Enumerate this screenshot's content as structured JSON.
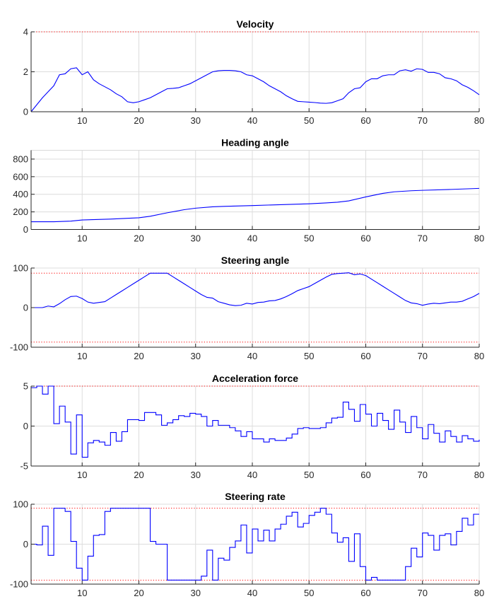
{
  "chart_data": [
    {
      "type": "line",
      "title": "Velocity",
      "xlim": [
        1,
        80
      ],
      "ylim": [
        0,
        4
      ],
      "xticks": [
        10,
        20,
        30,
        40,
        50,
        60,
        70,
        80
      ],
      "yticks": [
        0,
        2,
        4
      ],
      "grid": true,
      "limits": [
        0,
        4
      ],
      "color": "#0000ff",
      "limit_color": "#ff0000",
      "x": [
        1,
        2,
        3,
        4,
        5,
        6,
        7,
        8,
        9,
        10,
        11,
        12,
        13,
        14,
        15,
        16,
        17,
        18,
        19,
        20,
        21,
        22,
        23,
        24,
        25,
        26,
        27,
        28,
        29,
        30,
        31,
        32,
        33,
        34,
        35,
        36,
        37,
        38,
        39,
        40,
        41,
        42,
        43,
        44,
        45,
        46,
        47,
        48,
        49,
        50,
        51,
        52,
        53,
        54,
        55,
        56,
        57,
        58,
        59,
        60,
        61,
        62,
        63,
        64,
        65,
        66,
        67,
        68,
        69,
        70,
        71,
        72,
        73,
        74,
        75,
        76,
        77,
        78,
        79,
        80
      ],
      "values": [
        0,
        0.35,
        0.7,
        1.0,
        1.3,
        1.85,
        1.9,
        2.15,
        2.2,
        1.85,
        2.0,
        1.6,
        1.4,
        1.25,
        1.1,
        0.9,
        0.75,
        0.5,
        0.45,
        0.5,
        0.6,
        0.7,
        0.85,
        1.0,
        1.15,
        1.17,
        1.2,
        1.3,
        1.4,
        1.55,
        1.7,
        1.85,
        2.0,
        2.05,
        2.07,
        2.07,
        2.05,
        2.0,
        1.85,
        1.8,
        1.65,
        1.5,
        1.3,
        1.15,
        1.0,
        0.8,
        0.65,
        0.52,
        0.5,
        0.48,
        0.46,
        0.43,
        0.42,
        0.45,
        0.55,
        0.65,
        0.95,
        1.15,
        1.2,
        1.5,
        1.65,
        1.65,
        1.8,
        1.85,
        1.85,
        2.05,
        2.1,
        2.03,
        2.15,
        2.12,
        1.97,
        1.97,
        1.9,
        1.7,
        1.65,
        1.55,
        1.35,
        1.22,
        1.05,
        0.85
      ]
    },
    {
      "type": "line",
      "title": "Heading angle",
      "xlim": [
        1,
        80
      ],
      "ylim": [
        0,
        900
      ],
      "xticks": [
        10,
        20,
        30,
        40,
        50,
        60,
        70,
        80
      ],
      "yticks": [
        0,
        200,
        400,
        600,
        800
      ],
      "grid": true,
      "limits": [],
      "color": "#0000ff",
      "x": [
        1,
        5,
        8,
        10,
        15,
        20,
        22,
        25,
        28,
        30,
        33,
        35,
        40,
        45,
        50,
        53,
        55,
        57,
        60,
        63,
        65,
        68,
        70,
        75,
        80
      ],
      "values": [
        88,
        88,
        95,
        108,
        118,
        133,
        150,
        190,
        225,
        242,
        258,
        263,
        272,
        282,
        292,
        302,
        310,
        325,
        370,
        410,
        428,
        440,
        445,
        455,
        467
      ]
    },
    {
      "type": "line",
      "title": "Steering angle",
      "xlim": [
        1,
        80
      ],
      "ylim": [
        -100,
        100
      ],
      "xticks": [
        10,
        20,
        30,
        40,
        50,
        60,
        70,
        80
      ],
      "yticks": [
        -100,
        0,
        100
      ],
      "grid": true,
      "limits": [
        -87,
        87
      ],
      "color": "#0000ff",
      "limit_color": "#ff0000",
      "x": [
        1,
        2,
        3,
        4,
        5,
        6,
        7,
        8,
        9,
        10,
        11,
        12,
        13,
        14,
        15,
        16,
        17,
        18,
        19,
        20,
        21,
        22,
        23,
        24,
        25,
        26,
        27,
        28,
        29,
        30,
        31,
        32,
        33,
        34,
        35,
        36,
        37,
        38,
        39,
        40,
        41,
        42,
        43,
        44,
        45,
        46,
        47,
        48,
        49,
        50,
        51,
        52,
        53,
        54,
        55,
        56,
        57,
        58,
        59,
        60,
        61,
        62,
        63,
        64,
        65,
        66,
        67,
        68,
        69,
        70,
        71,
        72,
        73,
        74,
        75,
        76,
        77,
        78,
        79,
        80
      ],
      "values": [
        0,
        0,
        0,
        4,
        2,
        10,
        20,
        28,
        29,
        23,
        14,
        11,
        13,
        15,
        24,
        33,
        42,
        51,
        60,
        69,
        78,
        87,
        87,
        87,
        87,
        78,
        69,
        60,
        51,
        42,
        33,
        26,
        24,
        15,
        11,
        7,
        5,
        6,
        11,
        9,
        13,
        14,
        17,
        18,
        22,
        28,
        35,
        43,
        48,
        53,
        61,
        69,
        77,
        84,
        86,
        87,
        88,
        83,
        85,
        81,
        72,
        63,
        54,
        45,
        36,
        27,
        18,
        12,
        10,
        6,
        9,
        11,
        10,
        12,
        14,
        14,
        16,
        22,
        28,
        36
      ]
    },
    {
      "type": "line",
      "step": true,
      "title": "Acceleration force",
      "xlim": [
        1,
        80
      ],
      "ylim": [
        -5,
        5
      ],
      "xticks": [
        10,
        20,
        30,
        40,
        50,
        60,
        70,
        80
      ],
      "yticks": [
        -5,
        0,
        5
      ],
      "grid": true,
      "limits": [
        -5,
        5
      ],
      "color": "#0000ff",
      "limit_color": "#ff0000",
      "x": [
        1,
        2,
        3,
        4,
        5,
        6,
        7,
        8,
        9,
        10,
        11,
        12,
        13,
        14,
        15,
        16,
        17,
        18,
        19,
        20,
        21,
        22,
        23,
        24,
        25,
        26,
        27,
        28,
        29,
        30,
        31,
        32,
        33,
        34,
        35,
        36,
        37,
        38,
        39,
        40,
        41,
        42,
        43,
        44,
        45,
        46,
        47,
        48,
        49,
        50,
        51,
        52,
        53,
        54,
        55,
        56,
        57,
        58,
        59,
        60,
        61,
        62,
        63,
        64,
        65,
        66,
        67,
        68,
        69,
        70,
        71,
        72,
        73,
        74,
        75,
        76,
        77,
        78,
        79,
        80
      ],
      "values": [
        4.8,
        5,
        4,
        5,
        0.3,
        2.5,
        0.5,
        -3.5,
        1.4,
        -3.9,
        -2.1,
        -1.8,
        -2.0,
        -2.4,
        -0.8,
        -1.9,
        -0.7,
        0.8,
        0.8,
        0.7,
        1.7,
        1.7,
        1.4,
        0.1,
        0.4,
        0.8,
        1.3,
        1.2,
        1.6,
        1.5,
        1.2,
        0,
        0.7,
        0.1,
        0.1,
        -0.2,
        -0.6,
        -1.3,
        -0.7,
        -1.6,
        -1.6,
        -2.0,
        -1.6,
        -1.8,
        -1.8,
        -1.5,
        -1.0,
        -0.3,
        -0.2,
        -0.3,
        -0.3,
        -0.2,
        0.4,
        1.0,
        1.1,
        3.0,
        2.1,
        0.6,
        2.7,
        1.5,
        0,
        1.6,
        0.7,
        -0.4,
        2.0,
        0.5,
        -0.8,
        1.2,
        -0.2,
        -1.6,
        0.2,
        -0.9,
        -2.0,
        -0.6,
        -1.3,
        -2.0,
        -1.2,
        -1.6,
        -1.9,
        -1.7
      ]
    },
    {
      "type": "line",
      "step": true,
      "title": "Steering rate",
      "xlim": [
        1,
        80
      ],
      "ylim": [
        -100,
        100
      ],
      "xticks": [
        10,
        20,
        30,
        40,
        50,
        60,
        70,
        80
      ],
      "yticks": [
        -100,
        0,
        100
      ],
      "grid": true,
      "limits": [
        -90,
        90
      ],
      "color": "#0000ff",
      "limit_color": "#ff0000",
      "x": [
        1,
        2,
        3,
        4,
        5,
        6,
        7,
        8,
        9,
        10,
        11,
        12,
        13,
        14,
        15,
        16,
        17,
        18,
        19,
        20,
        21,
        22,
        23,
        24,
        25,
        26,
        27,
        28,
        29,
        30,
        31,
        32,
        33,
        34,
        35,
        36,
        37,
        38,
        39,
        40,
        41,
        42,
        43,
        44,
        45,
        46,
        47,
        48,
        49,
        50,
        51,
        52,
        53,
        54,
        55,
        56,
        57,
        58,
        59,
        60,
        61,
        62,
        63,
        64,
        65,
        66,
        67,
        68,
        69,
        70,
        71,
        72,
        73,
        74,
        75,
        76,
        77,
        78,
        79,
        80
      ],
      "values": [
        0,
        -2,
        45,
        -28,
        90,
        90,
        82,
        7,
        -60,
        -90,
        -30,
        22,
        24,
        82,
        90,
        90,
        90,
        90,
        90,
        90,
        90,
        7,
        0,
        0,
        -90,
        -90,
        -90,
        -90,
        -90,
        -90,
        -80,
        -15,
        -90,
        -35,
        -40,
        -8,
        8,
        48,
        -22,
        38,
        8,
        35,
        8,
        38,
        50,
        70,
        80,
        43,
        52,
        72,
        80,
        90,
        75,
        28,
        5,
        16,
        -43,
        26,
        -56,
        -90,
        -83,
        -90,
        -90,
        -90,
        -90,
        -90,
        -56,
        -10,
        -32,
        28,
        22,
        -15,
        22,
        26,
        -2,
        32,
        65,
        48,
        75,
        75
      ]
    }
  ]
}
